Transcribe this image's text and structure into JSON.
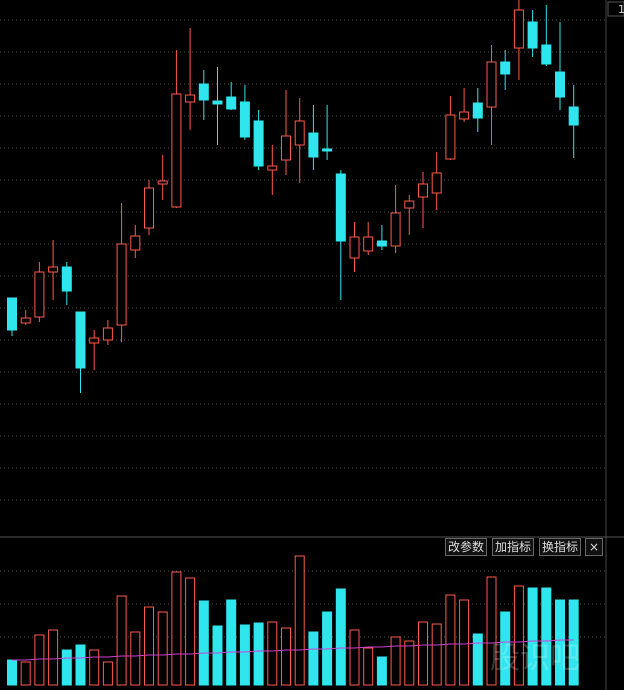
{
  "chart_data": [
    {
      "type": "candlestick",
      "up_color": "#ff5a4a",
      "down_color": "#2fe6ee",
      "ylim": [
        0,
        530
      ],
      "yticks": [
        30,
        62,
        94,
        126,
        158,
        190,
        222,
        254,
        286,
        318,
        350,
        382,
        414,
        446,
        478,
        510
      ],
      "grid": true,
      "open": [
        232,
        207,
        213,
        258,
        263,
        218,
        187,
        190,
        205,
        280,
        302,
        346,
        323,
        428,
        446,
        429,
        433,
        428,
        409,
        360,
        370,
        385,
        397,
        381,
        356,
        272,
        279,
        289,
        284,
        322,
        333,
        337,
        371,
        411,
        427,
        423,
        468,
        482,
        508,
        485,
        458,
        423
      ],
      "high": [
        232,
        220,
        268,
        290,
        268,
        218,
        200,
        210,
        327,
        305,
        350,
        375,
        480,
        502,
        460,
        463,
        448,
        445,
        420,
        385,
        440,
        432,
        425,
        425,
        360,
        308,
        308,
        305,
        345,
        335,
        358,
        378,
        434,
        442,
        442,
        485,
        480,
        530,
        520,
        525,
        508,
        445
      ],
      "low": [
        194,
        205,
        208,
        230,
        225,
        137,
        160,
        185,
        188,
        272,
        295,
        330,
        322,
        400,
        410,
        385,
        420,
        390,
        360,
        335,
        355,
        347,
        360,
        370,
        230,
        258,
        275,
        280,
        277,
        295,
        302,
        320,
        370,
        408,
        398,
        385,
        440,
        450,
        473,
        464,
        420,
        372
      ],
      "close": [
        200,
        212,
        258,
        263,
        239,
        162,
        192,
        202,
        286,
        294,
        342,
        349,
        436,
        435,
        430,
        426,
        421,
        393,
        364,
        364,
        394,
        409,
        373,
        379,
        289,
        293,
        293,
        284,
        317,
        329,
        346,
        357,
        415,
        418,
        412,
        468,
        456,
        520,
        482,
        466,
        433,
        405
      ],
      "corner_label": "1"
    },
    {
      "type": "bar",
      "ylim": [
        0,
        148
      ],
      "yticks": [
        48,
        81,
        114
      ],
      "grid": true,
      "values": [
        25,
        23,
        50,
        55,
        35,
        40,
        35,
        23,
        89,
        53,
        78,
        73,
        113,
        107,
        84,
        59,
        85,
        60,
        62,
        63,
        57,
        129,
        53,
        73,
        96,
        55,
        37,
        28,
        48,
        44,
        63,
        61,
        90,
        85,
        51,
        108,
        73,
        99,
        97,
        97,
        85,
        85
      ],
      "ma": {
        "color": "#d040d0",
        "values": [
          25,
          25,
          26,
          26,
          27,
          27,
          28,
          28,
          29,
          29,
          30,
          30,
          31,
          31,
          32,
          32,
          33,
          33,
          34,
          34,
          35,
          35,
          36,
          36,
          37,
          37,
          38,
          38,
          39,
          39,
          40,
          40,
          41,
          41,
          42,
          42,
          43,
          43,
          44,
          44,
          45,
          45
        ]
      },
      "buttons": [
        "改参数",
        "加指标",
        "换指标"
      ],
      "close_button": "×",
      "watermark": "股识吧"
    }
  ]
}
